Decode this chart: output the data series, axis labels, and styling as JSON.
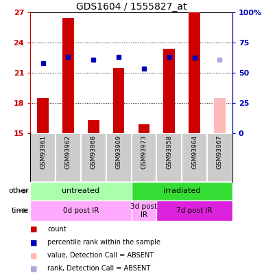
{
  "title": "GDS1604 / 1555827_at",
  "samples": [
    "GSM93961",
    "GSM93962",
    "GSM93968",
    "GSM93969",
    "GSM93973",
    "GSM93958",
    "GSM93964",
    "GSM93967"
  ],
  "bar_values": [
    18.5,
    26.5,
    16.3,
    21.5,
    15.9,
    23.4,
    27.0,
    18.5
  ],
  "bar_colors": [
    "#cc0000",
    "#cc0000",
    "#cc0000",
    "#cc0000",
    "#cc0000",
    "#cc0000",
    "#cc0000",
    "#ffbbbb"
  ],
  "rank_values": [
    22.0,
    22.6,
    22.3,
    22.6,
    21.4,
    22.6,
    22.5,
    22.3
  ],
  "rank_colors": [
    "#0000bb",
    "#0000bb",
    "#0000bb",
    "#0000bb",
    "#0000bb",
    "#0000bb",
    "#0000bb",
    "#aaaadd"
  ],
  "ylim": [
    15,
    27
  ],
  "yticks": [
    15,
    18,
    21,
    24,
    27
  ],
  "right_ylim": [
    0,
    100
  ],
  "right_yticks": [
    0,
    25,
    50,
    75,
    100
  ],
  "right_ytick_labels": [
    "0",
    "25",
    "50",
    "75",
    "100%"
  ],
  "groups_other": [
    {
      "label": "untreated",
      "start": 0,
      "end": 4,
      "color": "#aaffaa"
    },
    {
      "label": "irradiated",
      "start": 4,
      "end": 8,
      "color": "#33dd33"
    }
  ],
  "groups_time": [
    {
      "label": "0d post IR",
      "start": 0,
      "end": 4,
      "color": "#ffaaff"
    },
    {
      "label": "3d post\nIR",
      "start": 4,
      "end": 5,
      "color": "#ffaaff"
    },
    {
      "label": "7d post IR",
      "start": 5,
      "end": 8,
      "color": "#dd22dd"
    }
  ],
  "bar_width": 0.45,
  "plot_bg_color": "#ffffff",
  "label_bg_color": "#cccccc",
  "left_tick_color": "#cc0000",
  "right_tick_color": "#0000bb",
  "legend_items": [
    {
      "color": "#cc0000",
      "label": "count"
    },
    {
      "color": "#0000bb",
      "label": "percentile rank within the sample"
    },
    {
      "color": "#ffbbbb",
      "label": "value, Detection Call = ABSENT"
    },
    {
      "color": "#aaaadd",
      "label": "rank, Detection Call = ABSENT"
    }
  ]
}
